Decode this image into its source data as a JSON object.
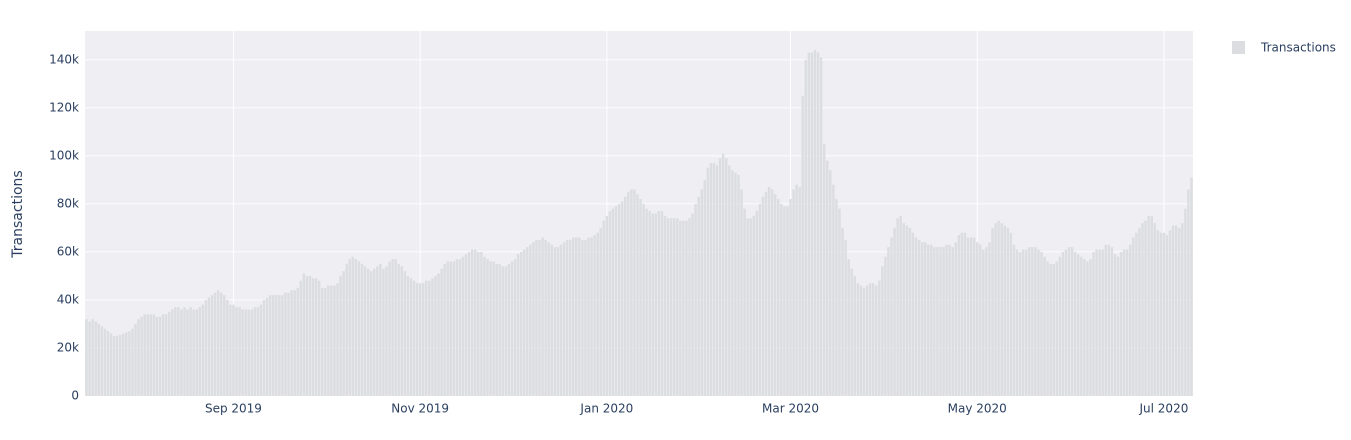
{
  "chart_data": {
    "type": "bar",
    "y_label": "Transactions",
    "legend": {
      "position": "top-right",
      "entries": [
        "Transactions"
      ]
    },
    "color": "#dcdde0",
    "background": "#eeeef3",
    "grid": true,
    "ylim": [
      0,
      152000
    ],
    "yticks": [
      {
        "value": 0,
        "label": "0"
      },
      {
        "value": 20000,
        "label": "20k"
      },
      {
        "value": 40000,
        "label": "40k"
      },
      {
        "value": 60000,
        "label": "60k"
      },
      {
        "value": 80000,
        "label": "80k"
      },
      {
        "value": 100000,
        "label": "100k"
      },
      {
        "value": 120000,
        "label": "120k"
      },
      {
        "value": 140000,
        "label": "140k"
      }
    ],
    "categories": [
      null,
      null,
      null,
      null,
      null,
      null,
      null,
      null,
      null,
      null,
      null,
      null,
      null,
      null,
      null,
      null,
      null,
      null,
      null,
      null,
      null,
      null,
      null,
      null,
      null,
      null,
      null,
      null,
      null,
      null,
      null,
      null,
      null,
      null,
      null,
      null,
      null,
      null,
      null,
      null,
      null,
      null,
      null,
      null,
      null,
      null,
      null,
      null,
      "Sep 2019",
      null,
      null,
      null,
      null,
      null,
      null,
      null,
      null,
      null,
      null,
      null,
      null,
      null,
      null,
      null,
      null,
      null,
      null,
      null,
      null,
      null,
      null,
      null,
      null,
      null,
      null,
      null,
      null,
      null,
      null,
      null,
      null,
      null,
      null,
      null,
      null,
      null,
      null,
      null,
      null,
      null,
      null,
      null,
      null,
      null,
      null,
      null,
      null,
      null,
      null,
      null,
      null,
      null,
      null,
      null,
      null,
      null,
      null,
      null,
      null,
      "Nov 2019",
      null,
      null,
      null,
      null,
      null,
      null,
      null,
      null,
      null,
      null,
      null,
      null,
      null,
      null,
      null,
      null,
      null,
      null,
      null,
      null,
      null,
      null,
      null,
      null,
      null,
      null,
      null,
      null,
      null,
      null,
      null,
      null,
      null,
      null,
      null,
      null,
      null,
      null,
      null,
      null,
      null,
      null,
      null,
      null,
      null,
      null,
      null,
      null,
      null,
      null,
      null,
      null,
      null,
      null,
      null,
      null,
      null,
      null,
      null,
      null,
      "Jan 2020",
      null,
      null,
      null,
      null,
      null,
      null,
      null,
      null,
      null,
      null,
      null,
      null,
      null,
      null,
      null,
      null,
      null,
      null,
      null,
      null,
      null,
      null,
      null,
      null,
      null,
      null,
      null,
      null,
      null,
      null,
      null,
      null,
      null,
      null,
      null,
      null,
      null,
      null,
      null,
      null,
      null,
      null,
      null,
      null,
      null,
      null,
      null,
      null,
      null,
      null,
      null,
      null,
      null,
      null,
      null,
      null,
      null,
      null,
      null,
      "Mar 2020",
      null,
      null,
      null,
      null,
      null,
      null,
      null,
      null,
      null,
      null,
      null,
      null,
      null,
      null,
      null,
      null,
      null,
      null,
      null,
      null,
      null,
      null,
      null,
      null,
      null,
      null,
      null,
      null,
      null,
      null,
      null,
      null,
      null,
      null,
      null,
      null,
      null,
      null,
      null,
      null,
      null,
      null,
      null,
      null,
      null,
      null,
      null,
      null,
      null,
      null,
      null,
      null,
      null,
      null,
      null,
      null,
      null,
      null,
      null,
      null,
      "May 2020",
      null,
      null,
      null,
      null,
      null,
      null,
      null,
      null,
      null,
      null,
      null,
      null,
      null,
      null,
      null,
      null,
      null,
      null,
      null,
      null,
      null,
      null,
      null,
      null,
      null,
      null,
      null,
      null,
      null,
      null,
      null,
      null,
      null,
      null,
      null,
      null,
      null,
      null,
      null,
      null,
      null,
      null,
      null,
      null,
      null,
      null,
      null,
      null,
      null,
      null,
      null,
      null,
      null,
      null,
      null,
      null,
      null,
      null,
      null,
      null,
      "Jul 2020",
      null,
      null,
      null,
      null,
      null,
      null,
      null,
      null,
      null
    ],
    "values": [
      32000,
      31000,
      32000,
      31000,
      30000,
      29000,
      28000,
      27000,
      26000,
      25000,
      25000,
      25500,
      26000,
      26500,
      27000,
      28000,
      30000,
      32000,
      33000,
      34000,
      34000,
      34000,
      34000,
      33000,
      33000,
      34000,
      34000,
      35000,
      36000,
      37000,
      37000,
      36000,
      37000,
      36000,
      37000,
      36000,
      36000,
      37000,
      38000,
      40000,
      41000,
      42000,
      43000,
      44000,
      43000,
      42000,
      40000,
      38000,
      38000,
      37000,
      37000,
      36000,
      36000,
      36000,
      36000,
      37000,
      37000,
      38000,
      40000,
      41000,
      42000,
      42000,
      42000,
      42000,
      42000,
      43000,
      43000,
      44000,
      44000,
      45000,
      48000,
      51000,
      50000,
      50000,
      49000,
      49000,
      48000,
      45000,
      45000,
      46000,
      46000,
      46000,
      47000,
      50000,
      52000,
      55000,
      57000,
      58000,
      57000,
      56000,
      55000,
      54000,
      53000,
      52000,
      53000,
      54000,
      55000,
      53000,
      54000,
      56000,
      57000,
      57000,
      55000,
      54000,
      52000,
      50000,
      49000,
      48000,
      47000,
      47000,
      47000,
      48000,
      48000,
      49000,
      50000,
      51000,
      53000,
      55000,
      56000,
      56000,
      56000,
      57000,
      57000,
      58000,
      59000,
      60000,
      61000,
      61000,
      60000,
      60000,
      58000,
      57000,
      56000,
      56000,
      55000,
      55000,
      54000,
      54000,
      55000,
      56000,
      57000,
      59000,
      60000,
      61000,
      62000,
      63000,
      64000,
      65000,
      65000,
      66000,
      65000,
      64000,
      63000,
      62000,
      62000,
      63000,
      64000,
      65000,
      65000,
      66000,
      66000,
      66000,
      65000,
      65000,
      66000,
      66000,
      67000,
      68000,
      70000,
      73000,
      75000,
      77000,
      78000,
      79000,
      80000,
      81000,
      83000,
      85000,
      86000,
      86000,
      84000,
      82000,
      80000,
      78000,
      77000,
      76000,
      76000,
      77000,
      77000,
      75000,
      74000,
      74000,
      74000,
      74000,
      73000,
      73000,
      73000,
      74000,
      76000,
      80000,
      83000,
      86000,
      90000,
      95000,
      97000,
      97000,
      96000,
      99000,
      101000,
      99000,
      96000,
      94000,
      93000,
      92000,
      86000,
      78000,
      74000,
      74000,
      75000,
      77000,
      80000,
      83000,
      85000,
      87000,
      86000,
      84000,
      82000,
      80000,
      79000,
      79000,
      82000,
      86000,
      88000,
      87000,
      125000,
      140000,
      143000,
      143000,
      144000,
      143000,
      141000,
      105000,
      98000,
      94000,
      88000,
      82000,
      78000,
      70000,
      65000,
      57000,
      53000,
      50000,
      47000,
      46000,
      45000,
      46000,
      47000,
      47000,
      46000,
      48000,
      54000,
      58000,
      62000,
      66000,
      70000,
      74000,
      75000,
      72000,
      71000,
      70000,
      68000,
      66000,
      65000,
      64000,
      64000,
      63000,
      63000,
      62000,
      62000,
      62000,
      62000,
      63000,
      63000,
      62000,
      64000,
      67000,
      68000,
      68000,
      66000,
      66000,
      66000,
      64000,
      63000,
      61000,
      62000,
      64000,
      70000,
      72000,
      73000,
      72000,
      71000,
      70000,
      68000,
      63000,
      61000,
      60000,
      61000,
      61000,
      62000,
      62000,
      62000,
      61000,
      60000,
      58000,
      56000,
      55000,
      55000,
      56000,
      58000,
      60000,
      61000,
      62000,
      62000,
      60000,
      59000,
      58000,
      57000,
      56000,
      57000,
      60000,
      61000,
      61000,
      61000,
      63000,
      63000,
      62000,
      59000,
      58000,
      60000,
      61000,
      61000,
      63000,
      66000,
      68000,
      70000,
      72000,
      73000,
      75000,
      75000,
      72000,
      69000,
      68000,
      68000,
      67000,
      69000,
      71000,
      71000,
      70000,
      72000,
      78000,
      86000,
      91000
    ]
  }
}
